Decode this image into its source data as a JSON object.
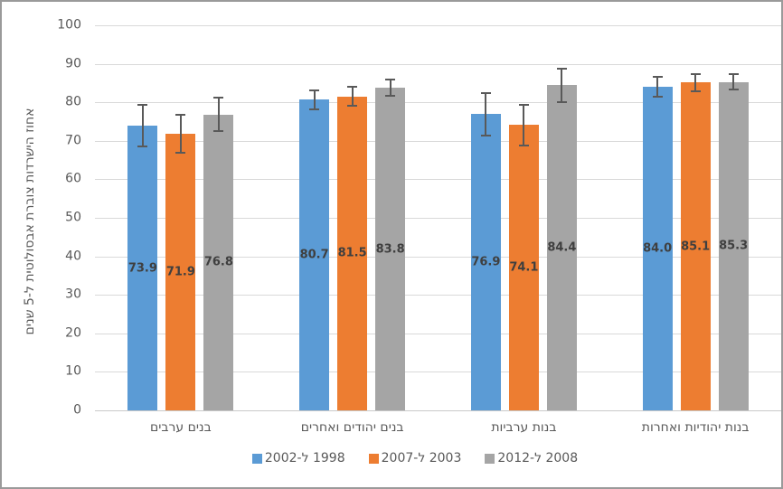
{
  "chart_data": {
    "type": "bar",
    "title": "",
    "ylabel": "אחוז הישרדות צוברת אבסולוטית ל-5 שנים",
    "xlabel": "",
    "ylim": [
      0,
      100
    ],
    "yticks": [
      0,
      10,
      20,
      30,
      40,
      50,
      60,
      70,
      80,
      90,
      100
    ],
    "grid": true,
    "legend_position": "bottom-center",
    "rtl": true,
    "categories": [
      "בנים ערבים",
      "בנים יהודים ואחרים",
      "בנות ערביות",
      "בנות יהודיות ואחרות"
    ],
    "series": [
      {
        "name": "1998 ל-2002",
        "color": "#5B9BD5",
        "values": [
          73.9,
          80.7,
          76.9,
          84.0
        ],
        "value_labels": [
          "73.9",
          "80.7",
          "76.9",
          "84.0"
        ],
        "errors": [
          5.6,
          2.7,
          5.8,
          2.8
        ]
      },
      {
        "name": "2003 ל-2007",
        "color": "#ED7D31",
        "values": [
          71.9,
          81.5,
          74.1,
          85.1
        ],
        "value_labels": [
          "71.9",
          "81.5",
          "74.1",
          "85.1"
        ],
        "errors": [
          5.2,
          2.7,
          5.5,
          2.4
        ]
      },
      {
        "name": "2008 ל-2012",
        "color": "#A5A5A5",
        "values": [
          76.8,
          83.8,
          84.4,
          85.3
        ],
        "value_labels": [
          "76.8",
          "83.8",
          "84.4",
          "85.3"
        ],
        "errors": [
          4.6,
          2.4,
          4.5,
          2.2
        ]
      }
    ],
    "colors": {
      "gridline": "#d9d9d9",
      "axis_line": "#c9c9c9",
      "error_bar": "#595959",
      "data_label": "#3f3f3f",
      "axis_text": "#595959",
      "border": "#9a9a9a",
      "background": "#ffffff"
    }
  }
}
